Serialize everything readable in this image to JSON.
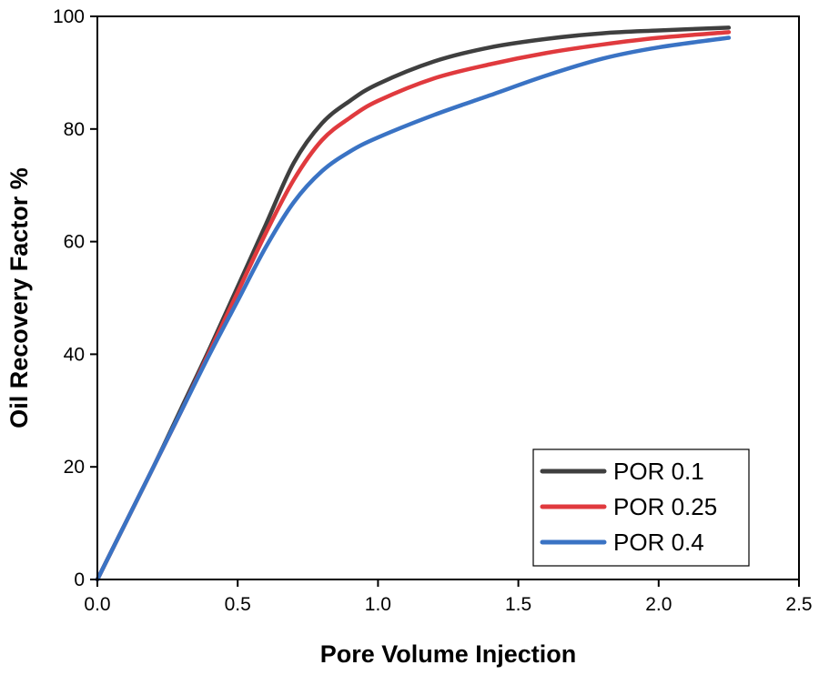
{
  "chart_data": {
    "type": "line",
    "xlabel": "Pore Volume Injection",
    "ylabel": "Oil Recovery Factor %",
    "xlim": [
      0,
      2.5
    ],
    "ylim": [
      0,
      100
    ],
    "xticks": [
      "0.0",
      "0.5",
      "1.0",
      "1.5",
      "2.0",
      "2.5"
    ],
    "yticks": [
      "0",
      "20",
      "40",
      "60",
      "80",
      "100"
    ],
    "grid": false,
    "legend_position": "bottom-right",
    "series": [
      {
        "name": "POR 0.1",
        "color": "#3f3f3f",
        "x": [
          0,
          0.1,
          0.2,
          0.3,
          0.4,
          0.5,
          0.6,
          0.7,
          0.8,
          0.9,
          1.0,
          1.2,
          1.4,
          1.6,
          1.8,
          2.0,
          2.25
        ],
        "y": [
          0,
          10,
          20,
          30.5,
          41,
          52,
          63,
          74,
          81,
          85,
          88,
          92,
          94.5,
          96,
          97,
          97.5,
          98
        ]
      },
      {
        "name": "POR 0.25",
        "color": "#e03a3e",
        "x": [
          0,
          0.1,
          0.2,
          0.3,
          0.4,
          0.5,
          0.6,
          0.7,
          0.8,
          0.9,
          1.0,
          1.2,
          1.4,
          1.6,
          1.8,
          2.0,
          2.25
        ],
        "y": [
          0,
          10,
          20,
          30,
          40.5,
          51,
          61.5,
          71,
          78,
          82,
          85,
          89,
          91.5,
          93.5,
          95,
          96.2,
          97.2
        ]
      },
      {
        "name": "POR 0.4",
        "color": "#3a73c4",
        "x": [
          0,
          0.1,
          0.2,
          0.3,
          0.4,
          0.5,
          0.6,
          0.7,
          0.8,
          0.9,
          1.0,
          1.2,
          1.4,
          1.6,
          1.8,
          2.0,
          2.25
        ],
        "y": [
          0,
          10,
          20,
          30,
          40,
          49.5,
          59,
          67,
          72.5,
          76,
          78.5,
          82.5,
          86,
          89.5,
          92.5,
          94.5,
          96.2
        ]
      }
    ]
  }
}
